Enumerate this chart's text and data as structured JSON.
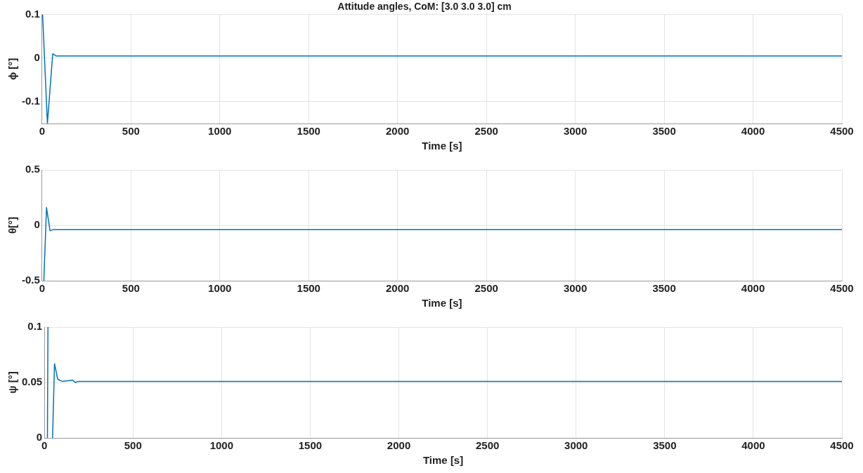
{
  "chart_data": [
    {
      "type": "line",
      "title": "Attitude angles, CoM: [3.0 3.0 3.0] cm",
      "xlabel": "Time [s]",
      "ylabel": "ϕ [°]",
      "grid": true,
      "xlim": [
        0,
        4500
      ],
      "xticks": [
        0,
        500,
        1000,
        1500,
        2000,
        2500,
        3000,
        3500,
        4000,
        4500
      ],
      "ylim": [
        -0.15,
        0.1
      ],
      "yticks": [
        -0.1,
        0,
        0.1
      ],
      "series": [
        {
          "color": "#0072bd",
          "x": [
            3,
            30,
            60,
            80,
            4500
          ],
          "values": [
            0.1,
            -0.15,
            0.01,
            0.005,
            0.005
          ]
        }
      ]
    },
    {
      "type": "line",
      "xlabel": "Time [s]",
      "ylabel": "θ[°]",
      "grid": true,
      "xlim": [
        0,
        4500
      ],
      "xticks": [
        0,
        500,
        1000,
        1500,
        2000,
        2500,
        3000,
        3500,
        4000,
        4500
      ],
      "ylim": [
        -0.5,
        0.5
      ],
      "yticks": [
        -0.5,
        0,
        0.5
      ],
      "series": [
        {
          "color": "#0072bd",
          "x": [
            10,
            25,
            45,
            60,
            4500
          ],
          "values": [
            -0.5,
            0.16,
            -0.05,
            -0.04,
            -0.04
          ]
        }
      ]
    },
    {
      "type": "line",
      "xlabel": "Time [s]",
      "ylabel": "ψ [°]",
      "grid": true,
      "xlim": [
        0,
        4500
      ],
      "xticks": [
        0,
        500,
        1000,
        1500,
        2000,
        2500,
        3000,
        3500,
        4000,
        4500
      ],
      "ylim": [
        0,
        0.1
      ],
      "yticks": [
        0,
        0.05,
        0.1
      ],
      "series": [
        {
          "color": "#0072bd",
          "x": [
            17,
            20,
            33,
            46,
            57,
            75,
            100,
            160,
            175,
            190,
            4500
          ],
          "values": [
            0,
            0.1,
            null,
            0,
            0.067,
            0.053,
            0.051,
            0.052,
            0.05,
            0.051,
            0.051
          ]
        }
      ]
    }
  ]
}
